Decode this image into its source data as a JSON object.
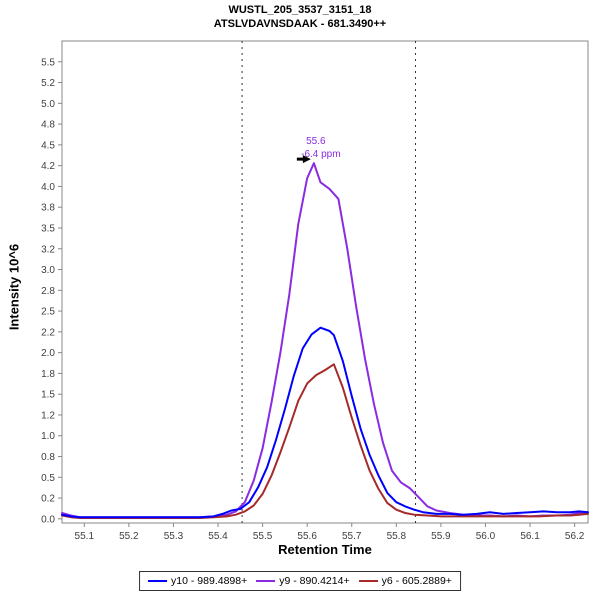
{
  "title": {
    "line1": "WUSTL_205_3537_3151_18",
    "line2": "ATSLVDAVNSDAAK - 681.3490++"
  },
  "axes": {
    "x": {
      "title": "Retention Time",
      "min": 55.05,
      "max": 56.23,
      "ticks": [
        {
          "v": 55.1,
          "label": "55.1"
        },
        {
          "v": 55.2,
          "label": "55.2"
        },
        {
          "v": 55.3,
          "label": "55.3"
        },
        {
          "v": 55.4,
          "label": "55.4"
        },
        {
          "v": 55.5,
          "label": "55.5"
        },
        {
          "v": 55.6,
          "label": "55.6"
        },
        {
          "v": 55.7,
          "label": "55.7"
        },
        {
          "v": 55.8,
          "label": "55.8"
        },
        {
          "v": 55.9,
          "label": "55.9"
        },
        {
          "v": 56.0,
          "label": "56.0"
        },
        {
          "v": 56.1,
          "label": "56.1"
        },
        {
          "v": 56.2,
          "label": "56.2"
        }
      ]
    },
    "y": {
      "title": "Intensity 10^6",
      "min": -0.05,
      "max": 5.75,
      "ticks": [
        {
          "v": 0.0,
          "label": "0.0"
        },
        {
          "v": 0.25,
          "label": "0.2"
        },
        {
          "v": 0.5,
          "label": "0.5"
        },
        {
          "v": 0.75,
          "label": "0.8"
        },
        {
          "v": 1.0,
          "label": "1.0"
        },
        {
          "v": 1.25,
          "label": "1.2"
        },
        {
          "v": 1.5,
          "label": "1.5"
        },
        {
          "v": 1.75,
          "label": "1.8"
        },
        {
          "v": 2.0,
          "label": "2.0"
        },
        {
          "v": 2.25,
          "label": "2.2"
        },
        {
          "v": 2.5,
          "label": "2.5"
        },
        {
          "v": 2.75,
          "label": "2.8"
        },
        {
          "v": 3.0,
          "label": "3.0"
        },
        {
          "v": 3.25,
          "label": "3.2"
        },
        {
          "v": 3.5,
          "label": "3.5"
        },
        {
          "v": 3.75,
          "label": "3.8"
        },
        {
          "v": 4.0,
          "label": "4.0"
        },
        {
          "v": 4.25,
          "label": "4.2"
        },
        {
          "v": 4.5,
          "label": "4.5"
        },
        {
          "v": 4.75,
          "label": "4.8"
        },
        {
          "v": 5.0,
          "label": "5.0"
        },
        {
          "v": 5.25,
          "label": "5.2"
        },
        {
          "v": 5.5,
          "label": "5.5"
        }
      ]
    }
  },
  "chart_data": {
    "type": "line",
    "title": "WUSTL_205_3537_3151_18 — ATSLVDAVNSDAAK - 681.3490++",
    "xlabel": "Retention Time",
    "ylabel": "Intensity 10^6",
    "xlim": [
      55.05,
      56.23
    ],
    "ylim": [
      -0.05,
      5.75
    ],
    "legend_position": "bottom",
    "grid": false,
    "peak_boundaries": [
      55.454,
      55.843
    ],
    "peak_annotation": {
      "retention_time": "55.6",
      "mass_error": "-6.4 ppm",
      "apex": [
        55.615,
        4.28
      ],
      "color": "#8A2BE2"
    },
    "draw_order": [
      1,
      2,
      0
    ],
    "series": [
      {
        "name": "y10 - 989.4898+",
        "color": "#0000FF",
        "points": [
          [
            55.05,
            0.05
          ],
          [
            55.07,
            0.03
          ],
          [
            55.09,
            0.02
          ],
          [
            55.12,
            0.02
          ],
          [
            55.15,
            0.02
          ],
          [
            55.18,
            0.02
          ],
          [
            55.21,
            0.02
          ],
          [
            55.24,
            0.02
          ],
          [
            55.27,
            0.02
          ],
          [
            55.3,
            0.02
          ],
          [
            55.33,
            0.02
          ],
          [
            55.36,
            0.02
          ],
          [
            55.39,
            0.03
          ],
          [
            55.41,
            0.06
          ],
          [
            55.43,
            0.1
          ],
          [
            55.45,
            0.12
          ],
          [
            55.47,
            0.2
          ],
          [
            55.49,
            0.38
          ],
          [
            55.51,
            0.62
          ],
          [
            55.53,
            0.95
          ],
          [
            55.55,
            1.32
          ],
          [
            55.57,
            1.72
          ],
          [
            55.59,
            2.05
          ],
          [
            55.61,
            2.22
          ],
          [
            55.63,
            2.3
          ],
          [
            55.65,
            2.26
          ],
          [
            55.66,
            2.21
          ],
          [
            55.68,
            1.9
          ],
          [
            55.7,
            1.48
          ],
          [
            55.72,
            1.08
          ],
          [
            55.74,
            0.77
          ],
          [
            55.76,
            0.52
          ],
          [
            55.78,
            0.31
          ],
          [
            55.8,
            0.2
          ],
          [
            55.82,
            0.15
          ],
          [
            55.84,
            0.11
          ],
          [
            55.86,
            0.08
          ],
          [
            55.89,
            0.06
          ],
          [
            55.92,
            0.06
          ],
          [
            55.95,
            0.05
          ],
          [
            55.98,
            0.06
          ],
          [
            56.01,
            0.08
          ],
          [
            56.04,
            0.06
          ],
          [
            56.07,
            0.07
          ],
          [
            56.1,
            0.08
          ],
          [
            56.13,
            0.09
          ],
          [
            56.16,
            0.08
          ],
          [
            56.19,
            0.08
          ],
          [
            56.21,
            0.09
          ],
          [
            56.23,
            0.08
          ]
        ]
      },
      {
        "name": "y9 - 890.4214+",
        "color": "#8A2BE2",
        "points": [
          [
            55.05,
            0.07
          ],
          [
            55.07,
            0.04
          ],
          [
            55.09,
            0.02
          ],
          [
            55.12,
            0.02
          ],
          [
            55.15,
            0.02
          ],
          [
            55.18,
            0.02
          ],
          [
            55.21,
            0.02
          ],
          [
            55.24,
            0.02
          ],
          [
            55.27,
            0.02
          ],
          [
            55.3,
            0.02
          ],
          [
            55.33,
            0.02
          ],
          [
            55.36,
            0.02
          ],
          [
            55.39,
            0.03
          ],
          [
            55.42,
            0.05
          ],
          [
            55.44,
            0.09
          ],
          [
            55.46,
            0.2
          ],
          [
            55.48,
            0.46
          ],
          [
            55.5,
            0.85
          ],
          [
            55.52,
            1.4
          ],
          [
            55.54,
            2.0
          ],
          [
            55.56,
            2.7
          ],
          [
            55.58,
            3.55
          ],
          [
            55.6,
            4.1
          ],
          [
            55.615,
            4.28
          ],
          [
            55.63,
            4.05
          ],
          [
            55.65,
            3.97
          ],
          [
            55.67,
            3.85
          ],
          [
            55.69,
            3.25
          ],
          [
            55.71,
            2.55
          ],
          [
            55.73,
            1.92
          ],
          [
            55.75,
            1.38
          ],
          [
            55.77,
            0.92
          ],
          [
            55.79,
            0.58
          ],
          [
            55.81,
            0.44
          ],
          [
            55.83,
            0.37
          ],
          [
            55.85,
            0.26
          ],
          [
            55.87,
            0.15
          ],
          [
            55.89,
            0.1
          ],
          [
            55.92,
            0.07
          ],
          [
            55.95,
            0.05
          ],
          [
            55.98,
            0.04
          ],
          [
            56.01,
            0.04
          ],
          [
            56.04,
            0.03
          ],
          [
            56.07,
            0.04
          ],
          [
            56.1,
            0.03
          ],
          [
            56.13,
            0.04
          ],
          [
            56.16,
            0.04
          ],
          [
            56.19,
            0.05
          ],
          [
            56.21,
            0.07
          ],
          [
            56.23,
            0.08
          ]
        ]
      },
      {
        "name": "y6 - 605.2889+",
        "color": "#A52A2A",
        "points": [
          [
            55.05,
            0.04
          ],
          [
            55.07,
            0.02
          ],
          [
            55.09,
            0.01
          ],
          [
            55.12,
            0.01
          ],
          [
            55.15,
            0.01
          ],
          [
            55.18,
            0.01
          ],
          [
            55.21,
            0.01
          ],
          [
            55.24,
            0.01
          ],
          [
            55.27,
            0.01
          ],
          [
            55.3,
            0.01
          ],
          [
            55.33,
            0.01
          ],
          [
            55.36,
            0.01
          ],
          [
            55.39,
            0.02
          ],
          [
            55.42,
            0.03
          ],
          [
            55.44,
            0.05
          ],
          [
            55.46,
            0.09
          ],
          [
            55.48,
            0.16
          ],
          [
            55.5,
            0.3
          ],
          [
            55.52,
            0.52
          ],
          [
            55.54,
            0.8
          ],
          [
            55.56,
            1.1
          ],
          [
            55.58,
            1.42
          ],
          [
            55.6,
            1.63
          ],
          [
            55.62,
            1.73
          ],
          [
            55.64,
            1.79
          ],
          [
            55.66,
            1.86
          ],
          [
            55.68,
            1.58
          ],
          [
            55.7,
            1.22
          ],
          [
            55.72,
            0.88
          ],
          [
            55.74,
            0.58
          ],
          [
            55.76,
            0.36
          ],
          [
            55.78,
            0.19
          ],
          [
            55.8,
            0.11
          ],
          [
            55.82,
            0.07
          ],
          [
            55.84,
            0.05
          ],
          [
            55.87,
            0.04
          ],
          [
            55.9,
            0.03
          ],
          [
            55.93,
            0.03
          ],
          [
            55.96,
            0.03
          ],
          [
            56.0,
            0.03
          ],
          [
            56.04,
            0.03
          ],
          [
            56.08,
            0.03
          ],
          [
            56.12,
            0.03
          ],
          [
            56.16,
            0.04
          ],
          [
            56.19,
            0.04
          ],
          [
            56.21,
            0.05
          ],
          [
            56.23,
            0.06
          ]
        ]
      }
    ]
  },
  "style_colors": {
    "axis": "#888888",
    "tick_label": "#404040",
    "boundary_line": "#333333"
  }
}
